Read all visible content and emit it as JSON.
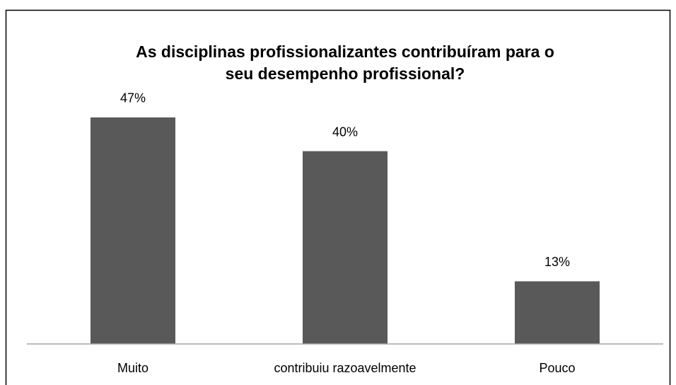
{
  "chart_data": {
    "type": "bar",
    "title": [
      "As disciplinas profissionalizantes contribuíram para o",
      "seu desempenho profissional?"
    ],
    "categories": [
      "Muito",
      "contribuiu razoavelmente",
      "Pouco"
    ],
    "values": [
      47,
      40,
      13
    ],
    "value_labels": [
      "47%",
      "40%",
      "13%"
    ],
    "color": "#595959"
  }
}
